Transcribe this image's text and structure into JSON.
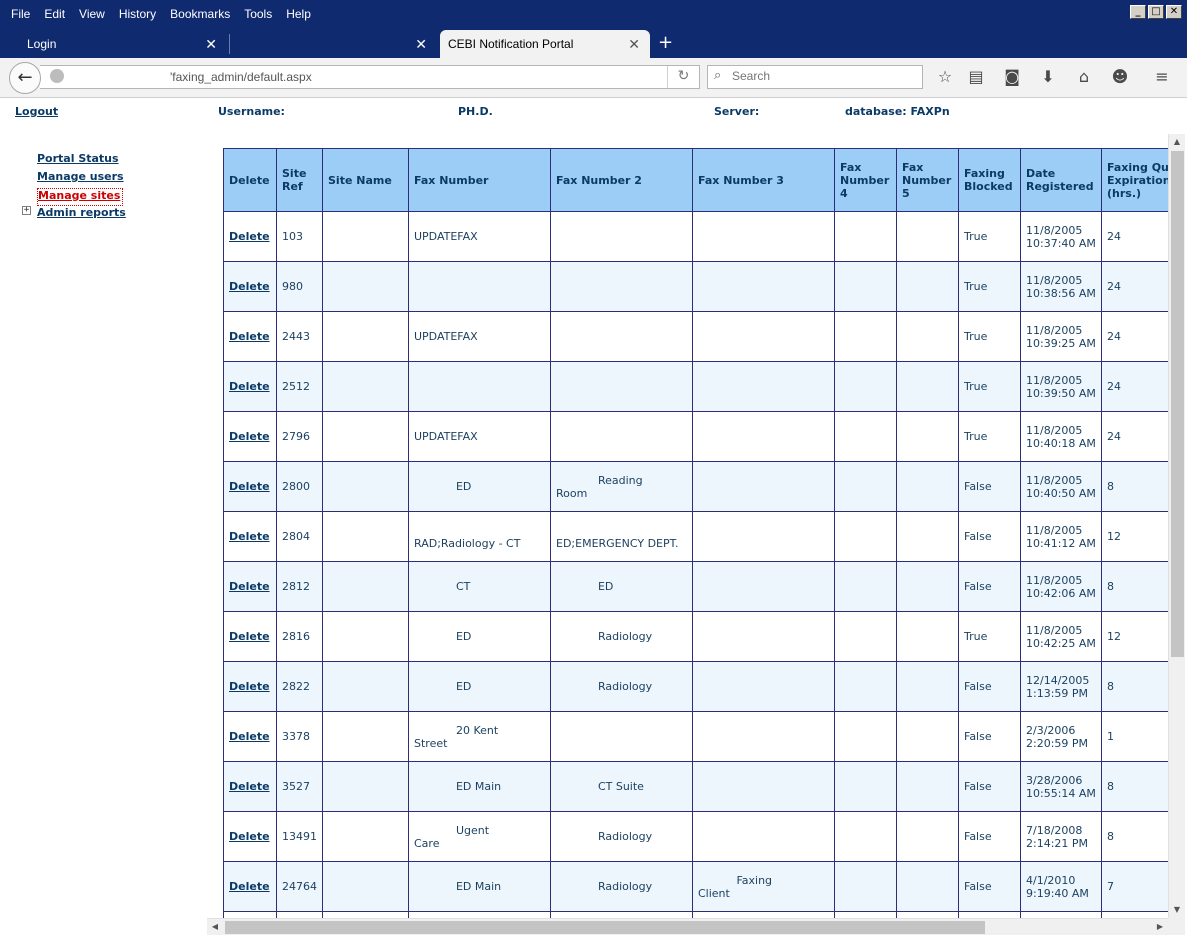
{
  "menu": [
    "File",
    "Edit",
    "View",
    "History",
    "Bookmarks",
    "Tools",
    "Help"
  ],
  "window_buttons": {
    "minimize": "_",
    "maximize": "□",
    "close": "✕"
  },
  "tabs": [
    {
      "label": "Login",
      "close": "✕"
    },
    {
      "label": "",
      "close": "✕"
    },
    {
      "label": "CEBI Notification Portal",
      "close": "✕"
    }
  ],
  "new_tab": "+",
  "nav": {
    "url": "'faxing_admin/default.aspx",
    "search_placeholder": "Search",
    "back_glyph": "←",
    "reload_glyph": "↻",
    "search_glyph": "🔍"
  },
  "toolbar_icons": [
    "star-icon",
    "reading-list-icon",
    "pocket-icon",
    "download-icon",
    "home-icon",
    "smiley-icon",
    "menu-icon"
  ],
  "header": {
    "logout": "Logout",
    "username_label": "Username:",
    "username_value": "PH.D.",
    "server_label": "Server:",
    "database_label": "database: FAXPn"
  },
  "sidebar": {
    "items": [
      "Portal Status",
      "Manage users",
      "Manage sites",
      "Admin reports"
    ],
    "expander": "+"
  },
  "table": {
    "columns": [
      "Delete",
      "Site Ref",
      "Site Name",
      "Fax Number",
      "Fax Number 2",
      "Fax Number 3",
      "Fax Number 4",
      "Fax Number 5",
      "Faxing Blocked",
      "Date Registered",
      "Faxing Queue Expiration (hrs.)"
    ],
    "delete_label": "Delete",
    "rows": [
      {
        "ref": "103",
        "name": "",
        "fax1": "UPDATEFAX",
        "fax2": "",
        "fax3": "",
        "fax4": "",
        "fax5": "",
        "blocked": "True",
        "date": "11/8/2005 10:37:40 AM",
        "expiry": "24"
      },
      {
        "ref": "980",
        "name": "",
        "fax1": "",
        "fax2": "",
        "fax3": "",
        "fax4": "",
        "fax5": "",
        "blocked": "True",
        "date": "11/8/2005 10:38:56 AM",
        "expiry": "24"
      },
      {
        "ref": "2443",
        "name": "",
        "fax1": "UPDATEFAX",
        "fax2": "",
        "fax3": "",
        "fax4": "",
        "fax5": "",
        "blocked": "True",
        "date": "11/8/2005 10:39:25 AM",
        "expiry": "24"
      },
      {
        "ref": "2512",
        "name": "",
        "fax1": "",
        "fax2": "",
        "fax3": "",
        "fax4": "",
        "fax5": "",
        "blocked": "True",
        "date": "11/8/2005 10:39:50 AM",
        "expiry": "24"
      },
      {
        "ref": "2796",
        "name": "",
        "fax1": "UPDATEFAX",
        "fax2": "",
        "fax3": "",
        "fax4": "",
        "fax5": "",
        "blocked": "True",
        "date": "11/8/2005 10:40:18 AM",
        "expiry": "24"
      },
      {
        "ref": "2800",
        "name": "",
        "fax1": "            ED",
        "fax2": "            Reading\nRoom",
        "fax3": "",
        "fax4": "",
        "fax5": "",
        "blocked": "False",
        "date": "11/8/2005 10:40:50 AM",
        "expiry": "8"
      },
      {
        "ref": "2804",
        "name": "",
        "fax1": "\nRAD;Radiology - CT",
        "fax2": "\nED;EMERGENCY DEPT.",
        "fax3": "",
        "fax4": "",
        "fax5": "",
        "blocked": "False",
        "date": "11/8/2005 10:41:12 AM",
        "expiry": "12"
      },
      {
        "ref": "2812",
        "name": "",
        "fax1": "            CT",
        "fax2": "            ED",
        "fax3": "",
        "fax4": "",
        "fax5": "",
        "blocked": "False",
        "date": "11/8/2005 10:42:06 AM",
        "expiry": "8"
      },
      {
        "ref": "2816",
        "name": "",
        "fax1": "            ED",
        "fax2": "            Radiology",
        "fax3": "",
        "fax4": "",
        "fax5": "",
        "blocked": "True",
        "date": "11/8/2005 10:42:25 AM",
        "expiry": "12"
      },
      {
        "ref": "2822",
        "name": "",
        "fax1": "            ED",
        "fax2": "            Radiology",
        "fax3": "",
        "fax4": "",
        "fax5": "",
        "blocked": "False",
        "date": "12/14/2005 1:13:59 PM",
        "expiry": "8"
      },
      {
        "ref": "3378",
        "name": "",
        "fax1": "            20 Kent\nStreet",
        "fax2": "",
        "fax3": "",
        "fax4": "",
        "fax5": "",
        "blocked": "False",
        "date": "2/3/2006 2:20:59 PM",
        "expiry": "1"
      },
      {
        "ref": "3527",
        "name": "",
        "fax1": "            ED Main",
        "fax2": "            CT Suite",
        "fax3": "",
        "fax4": "",
        "fax5": "",
        "blocked": "False",
        "date": "3/28/2006 10:55:14 AM",
        "expiry": "8"
      },
      {
        "ref": "13491",
        "name": "",
        "fax1": "            Ugent\nCare",
        "fax2": "            Radiology",
        "fax3": "",
        "fax4": "",
        "fax5": "",
        "blocked": "False",
        "date": "7/18/2008 2:14:21 PM",
        "expiry": "8"
      },
      {
        "ref": "24764",
        "name": "",
        "fax1": "            ED Main",
        "fax2": "            Radiology",
        "fax3": "           Faxing\nClient",
        "fax4": "",
        "fax5": "",
        "blocked": "False",
        "date": "4/1/2010 9:19:40 AM",
        "expiry": "7"
      },
      {
        "ref": "",
        "name": "",
        "fax1": "",
        "fax2": "",
        "fax3": "",
        "fax4": "",
        "fax5": "",
        "blocked": "",
        "date": "",
        "expiry": ""
      }
    ]
  },
  "scroll": {
    "up": "▲",
    "down": "▼",
    "left": "◀",
    "right": "▶"
  }
}
